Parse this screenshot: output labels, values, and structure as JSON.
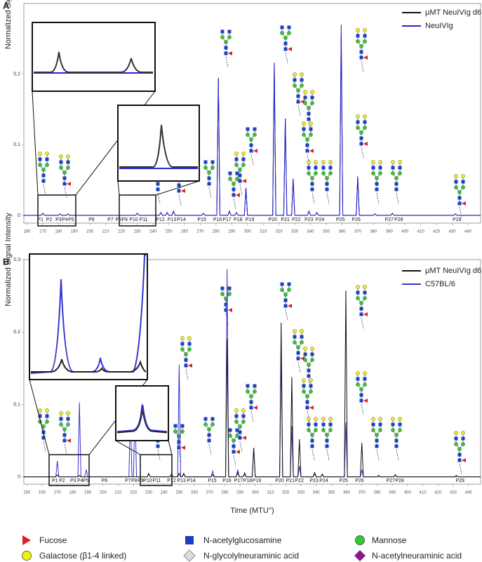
{
  "chart_data": [
    {
      "type": "line",
      "panel": "A",
      "ylabel": "Normalized Signal Intensity",
      "xlim": [
        158,
        448
      ],
      "ylim": [
        -0.011,
        0.3
      ],
      "xticks": [
        160,
        170,
        180,
        190,
        200,
        210,
        220,
        230,
        240,
        250,
        260,
        270,
        280,
        290,
        300,
        310,
        320,
        330,
        340,
        350,
        360,
        370,
        380,
        390,
        400,
        410,
        420,
        430,
        440
      ],
      "yticks": [
        0,
        0.1,
        0.2
      ],
      "legend": "upper right",
      "x": [
        158,
        169,
        170,
        171,
        180,
        181,
        182,
        185,
        186,
        187,
        229,
        230,
        231,
        244,
        245,
        246,
        248,
        249,
        250,
        252,
        253,
        254,
        271,
        272,
        273,
        280.5,
        281.5,
        282.5,
        287.5,
        288.5,
        289.5,
        292,
        293,
        294,
        298,
        299,
        300,
        316,
        317,
        318,
        323,
        324,
        325,
        328,
        329,
        330,
        338,
        339,
        340,
        343,
        344,
        345,
        358.5,
        359.5,
        360.5,
        369,
        370,
        371,
        380,
        381,
        382,
        391,
        392,
        393,
        431,
        432,
        433,
        448
      ],
      "series": [
        {
          "name": "μMT NeuIVIg d6",
          "color": "#111111",
          "values": [
            0,
            0,
            0.003,
            0,
            0,
            0.002,
            0,
            0,
            0.002,
            0,
            0,
            0.003,
            0,
            0,
            0.004,
            0,
            0,
            0.004,
            0,
            0,
            0.006,
            0,
            0,
            0.003,
            0,
            0,
            0.193,
            0,
            0,
            0.006,
            0,
            0,
            0.004,
            0,
            0,
            0.039,
            0,
            0,
            0.216,
            0,
            0,
            0.137,
            0,
            0,
            0.052,
            0,
            0,
            0.006,
            0,
            0,
            0.004,
            0,
            0,
            0.256,
            0,
            0,
            0.055,
            0,
            0,
            0.002,
            0,
            0,
            0.003,
            0,
            0,
            0.002,
            0,
            0
          ]
        },
        {
          "name": "NeuIVIg",
          "color": "#2424d6",
          "values": [
            0,
            0,
            0.003,
            0,
            0,
            0.002,
            0,
            0,
            0.002,
            0,
            0,
            0.003,
            0,
            0,
            0.004,
            0,
            0,
            0.004,
            0,
            0,
            0.006,
            0,
            0,
            0.003,
            0,
            0,
            0.195,
            0,
            0,
            0.006,
            0,
            0,
            0.004,
            0,
            0,
            0.039,
            0,
            0,
            0.216,
            0,
            0,
            0.137,
            0,
            0,
            0.052,
            0,
            0,
            0.006,
            0,
            0,
            0.004,
            0,
            0,
            0.27,
            0,
            0,
            0.055,
            0,
            0,
            0.002,
            0,
            0,
            0.003,
            0,
            0,
            0.002,
            0,
            0
          ]
        }
      ],
      "peak_labels": [
        {
          "text": "P1",
          "x": 168.5
        },
        {
          "text": "P2",
          "x": 174
        },
        {
          "text": "P3",
          "x": 180
        },
        {
          "text": "P4",
          "x": 184
        },
        {
          "text": "P5",
          "x": 188
        },
        {
          "text": "P6",
          "x": 201
        },
        {
          "text": "P7",
          "x": 213
        },
        {
          "text": "P8",
          "x": 218
        },
        {
          "text": "P9",
          "x": 222
        },
        {
          "text": "P10",
          "x": 227.7
        },
        {
          "text": "P11",
          "x": 234
        },
        {
          "text": "P12",
          "x": 244.6
        },
        {
          "text": "P13",
          "x": 252
        },
        {
          "text": "P14",
          "x": 258
        },
        {
          "text": "P15",
          "x": 271
        },
        {
          "text": "P16",
          "x": 281
        },
        {
          "text": "P17",
          "x": 287
        },
        {
          "text": "P18",
          "x": 294
        },
        {
          "text": "P19",
          "x": 301.5
        },
        {
          "text": "P20",
          "x": 316
        },
        {
          "text": "P21",
          "x": 324
        },
        {
          "text": "P22",
          "x": 331
        },
        {
          "text": "P23",
          "x": 339
        },
        {
          "text": "P24",
          "x": 346
        },
        {
          "text": "P25",
          "x": 359
        },
        {
          "text": "P26",
          "x": 369
        },
        {
          "text": "P27",
          "x": 390
        },
        {
          "text": "P28",
          "x": 396
        },
        {
          "text": "P29",
          "x": 433
        }
      ]
    },
    {
      "type": "line",
      "panel": "B",
      "ylabel": "Normalized Signal Intensity",
      "xlabel": "Time (MTU'')",
      "xlim": [
        148,
        448
      ],
      "ylim": [
        -0.01,
        0.3
      ],
      "xticks": [
        150,
        160,
        170,
        180,
        190,
        200,
        210,
        220,
        230,
        240,
        250,
        260,
        270,
        280,
        290,
        300,
        310,
        320,
        330,
        340,
        350,
        360,
        370,
        380,
        390,
        400,
        410,
        420,
        430,
        440
      ],
      "yticks": [
        0,
        0.1,
        0.2,
        0.3
      ],
      "legend": "upper right",
      "x": [
        148,
        169,
        170,
        171,
        183.5,
        184.5,
        185.5,
        188,
        189,
        190,
        217,
        218,
        219,
        220,
        221,
        222,
        229,
        230,
        231,
        244,
        245,
        246,
        249,
        250,
        251,
        252,
        253,
        254,
        271,
        272,
        273,
        280.5,
        281.5,
        282.5,
        287.5,
        288.5,
        289.5,
        292,
        293,
        294,
        298,
        299,
        300,
        316,
        317,
        318,
        323,
        324,
        325,
        328,
        329,
        330,
        338,
        339,
        340,
        343,
        344,
        345,
        358.5,
        359.5,
        360.5,
        369,
        370,
        371,
        380,
        381,
        382,
        391,
        392,
        393,
        431,
        432,
        433,
        448
      ],
      "series": [
        {
          "name": "μMT NeuIVIg d6",
          "color": "#111111",
          "values": [
            0,
            0,
            0.003,
            0,
            0,
            0.002,
            0,
            0,
            0,
            0,
            0,
            0,
            0,
            0,
            0,
            0,
            0,
            0.004,
            0,
            0,
            0.004,
            0,
            0,
            0.005,
            0,
            0,
            0.005,
            0,
            0,
            0.003,
            0,
            0,
            0.19,
            0,
            0,
            0.006,
            0,
            0,
            0.004,
            0,
            0,
            0.04,
            0,
            0,
            0.213,
            0,
            0,
            0.138,
            0,
            0,
            0.052,
            0,
            0,
            0.006,
            0,
            0,
            0.004,
            0,
            0,
            0.257,
            0,
            0,
            0.047,
            0,
            0,
            0.002,
            0,
            0,
            0.003,
            0,
            0,
            0.002,
            0,
            0
          ]
        },
        {
          "name": "C57BL/6",
          "color": "#3434d0",
          "values": [
            0,
            0,
            0.022,
            0,
            0,
            0.103,
            0,
            0,
            0.01,
            0,
            0,
            0.09,
            0,
            0,
            0.1,
            0,
            0,
            0.005,
            0,
            0,
            0.002,
            0,
            0,
            0.155,
            0,
            0,
            0.004,
            0,
            0,
            0.008,
            0,
            0,
            0.287,
            0,
            0,
            0.01,
            0,
            0,
            0.006,
            0,
            0,
            0.04,
            0,
            0,
            0.17,
            0,
            0,
            0.07,
            0,
            0,
            0.015,
            0,
            0,
            0.004,
            0,
            0,
            0.003,
            0,
            0,
            0.075,
            0,
            0,
            0.01,
            0,
            0,
            0.001,
            0,
            0,
            0.002,
            0,
            0,
            0.001,
            0,
            0
          ]
        }
      ],
      "peak_labels": [
        {
          "text": "P1",
          "x": 168.4
        },
        {
          "text": "P2",
          "x": 173
        },
        {
          "text": "P3",
          "x": 180.4
        },
        {
          "text": "P4",
          "x": 185
        },
        {
          "text": "P5",
          "x": 188.7
        },
        {
          "text": "P6",
          "x": 201
        },
        {
          "text": "P7",
          "x": 216.4
        },
        {
          "text": "P8",
          "x": 220.5
        },
        {
          "text": "P9",
          "x": 224.7
        },
        {
          "text": "P10",
          "x": 229.3
        },
        {
          "text": "P11",
          "x": 235.3
        },
        {
          "text": "P12",
          "x": 245
        },
        {
          "text": "P13",
          "x": 251.5
        },
        {
          "text": "P14",
          "x": 258
        },
        {
          "text": "P15",
          "x": 271.7
        },
        {
          "text": "P16",
          "x": 281.4
        },
        {
          "text": "P17",
          "x": 289
        },
        {
          "text": "P18",
          "x": 295
        },
        {
          "text": "P19",
          "x": 301
        },
        {
          "text": "P20",
          "x": 316
        },
        {
          "text": "P21",
          "x": 323
        },
        {
          "text": "P22",
          "x": 329
        },
        {
          "text": "P23",
          "x": 338.6
        },
        {
          "text": "P24",
          "x": 345
        },
        {
          "text": "P25",
          "x": 358
        },
        {
          "text": "P26",
          "x": 368.5
        },
        {
          "text": "P27",
          "x": 389
        },
        {
          "text": "P28",
          "x": 394.8
        },
        {
          "text": "P29",
          "x": 434.5
        }
      ]
    }
  ],
  "legend_key": [
    "Fucose",
    "N-acetylglucosamine",
    "Mannose",
    "Galactose (β1-4 linked)",
    "N-glycolylneuraminic acid",
    "N-acetylneuraminic acid"
  ]
}
